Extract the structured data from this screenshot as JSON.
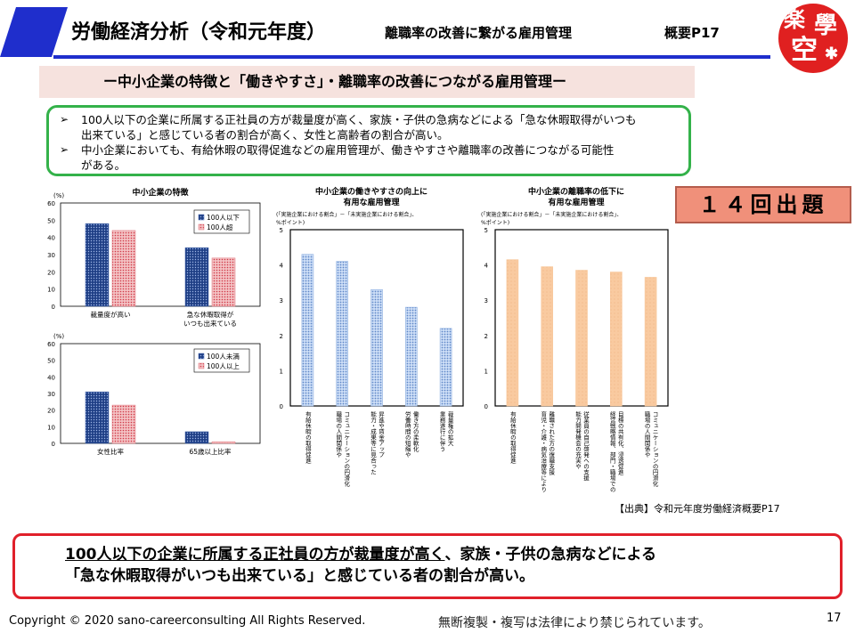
{
  "header": {
    "title": "労働経済分析（令和元年度）",
    "subtitle": "離職率の改善に繋がる雇用管理",
    "page_ref": "概要P17",
    "logo": {
      "c1": "楽",
      "c2": "學",
      "c3": "空",
      "star": "✱"
    }
  },
  "section_title": "ー中小企業の特徴と「働きやすさ」・離職率の改善につながる雇用管理ー",
  "summary": {
    "bullet1_line1": "100人以下の企業に所属する正社員の方が裁量度が高く、家族・子供の急病などによる「急な休暇取得がいつも",
    "bullet1_line2": "出来ている」と感じている者の割合が高く、女性と高齢者の割合が高い。",
    "bullet2_line1": "中小企業においても、有給休暇の取得促進などの雇用管理が、働きやすさや離職率の改善につながる可能性",
    "bullet2_line2": "がある。"
  },
  "badge": "１４回出題",
  "source": "【出典】令和元年度労働経済概要P17",
  "highlight": {
    "part1": "100人以下の企業に所属する正社員の方が裁量度が高く",
    "part2": "、家族・子供の急病などによる",
    "line2": "「急な休暇取得がいつも出来ている」と感じている者の割合が高い。"
  },
  "footer": {
    "copyright": "Copyright © 2020 sano-careerconsulting All Rights Reserved.",
    "notice": "無断複製・複写は法律により禁じられています。",
    "page": "17"
  },
  "colors": {
    "accent": "#1f2ecc",
    "green": "#34b24a",
    "red": "#e0202a",
    "badge": "#f0907a"
  },
  "chart_data": [
    {
      "type": "bar",
      "title": "中小企業の特徴",
      "ylabel": "(%)",
      "ylim": [
        0,
        60
      ],
      "yticks": [
        0,
        10,
        20,
        30,
        40,
        50,
        60
      ],
      "categories": [
        "裁量度が高い",
        "急な休暇取得が|いつも出来ている"
      ],
      "series": [
        {
          "name": "100人以下",
          "values": [
            48,
            34
          ],
          "color": "#3a5fa8",
          "pattern": "dots-blue"
        },
        {
          "name": "100人超",
          "values": [
            44,
            28
          ],
          "color": "#e07078",
          "pattern": "dots-red"
        }
      ],
      "legend": "top-right"
    },
    {
      "type": "bar",
      "ylabel": "(%)",
      "ylim": [
        0,
        60
      ],
      "yticks": [
        0,
        10,
        20,
        30,
        40,
        50,
        60
      ],
      "categories": [
        "女性比率",
        "65歳以上比率"
      ],
      "series": [
        {
          "name": "100人未満",
          "values": [
            31,
            7
          ],
          "color": "#3a5fa8",
          "pattern": "dots-blue"
        },
        {
          "name": "100人以上",
          "values": [
            23,
            1
          ],
          "color": "#e07078",
          "pattern": "dots-red"
        }
      ],
      "legend": "top-right"
    },
    {
      "type": "bar",
      "title": "中小企業の働きやすさの向上に|有用な雇用管理",
      "note": "(「実施企業における割合」－「未実施企業における割合」、|%ポイント)",
      "ylim": [
        0,
        5
      ],
      "yticks": [
        0,
        1,
        2,
        3,
        4,
        5
      ],
      "categories": [
        "有給休暇の取得促進",
        "職場の人間関係や|コミュニケーションの円滑化",
        "能力・成果等に見合った|昇進や賃金アップ",
        "労働時間の短縮や|働き方の柔軟化",
        "業務遂行に伴う|裁量権の拡大"
      ],
      "values": [
        4.3,
        4.1,
        3.3,
        2.8,
        2.2
      ],
      "color": "#8fb0e0",
      "pattern": "hatch-blue"
    },
    {
      "type": "bar",
      "title": "中小企業の離職率の低下に|有用な雇用管理",
      "note": "(「実施企業における割合」－「未実施企業における割合」、|%ポイント)",
      "ylim": [
        0,
        5
      ],
      "yticks": [
        0,
        1,
        2,
        3,
        4,
        5
      ],
      "categories": [
        "有給休暇の取得促進",
        "育児・介護・病気治療等により|離職された方の復職支援",
        "能力開発機会の充実や|従業員の自己啓発への支援",
        "経営戦略情報、部門・職場での|目標の共有化、浸透促進",
        "職場の人間関係や|コミュニケーションの円滑化"
      ],
      "values": [
        4.15,
        3.95,
        3.85,
        3.8,
        3.65
      ],
      "color": "#f8c89c",
      "pattern": "plain-orange"
    }
  ]
}
